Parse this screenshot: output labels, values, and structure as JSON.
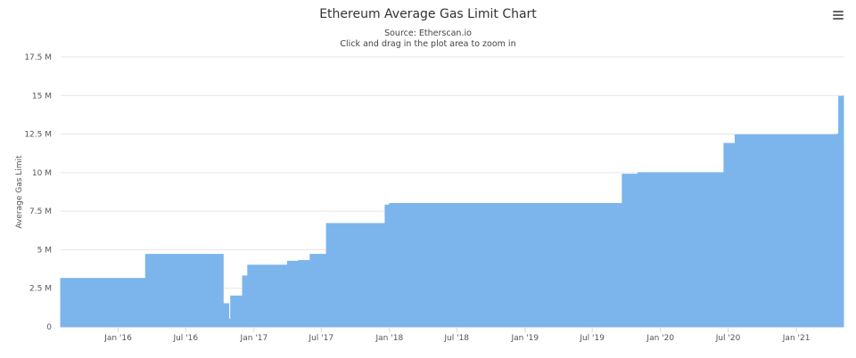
{
  "chart": {
    "title": "Ethereum Average Gas Limit Chart",
    "subtitle_source": "Source: Etherscan.io",
    "subtitle_hint": "Click and drag in the plot area to zoom in",
    "menu_icon": "hamburger-menu-icon"
  },
  "colors": {
    "area_fill": "#7cb5ec",
    "grid": "#e6e6e6",
    "axis_line": "#ccd6eb",
    "text": "#333333"
  },
  "chart_data": {
    "type": "area",
    "title": "Ethereum Average Gas Limit Chart",
    "subtitle": "Source: Etherscan.io",
    "xlabel": "",
    "ylabel": "Average Gas Limit",
    "ylim": [
      0,
      17500000
    ],
    "xlim": [
      "2015-07-30",
      "2021-05-08"
    ],
    "y_ticks": [
      0,
      2500000,
      5000000,
      7500000,
      10000000,
      12500000,
      15000000,
      17500000
    ],
    "y_tick_labels": [
      "0",
      "2.5 M",
      "5 M",
      "7.5 M",
      "10 M",
      "12.5 M",
      "15 M",
      "17.5 M"
    ],
    "x_ticks": [
      "2016-01-01",
      "2016-07-01",
      "2017-01-01",
      "2017-07-01",
      "2018-01-01",
      "2018-07-01",
      "2019-01-01",
      "2019-07-01",
      "2020-01-01",
      "2020-07-01",
      "2021-01-01"
    ],
    "x_tick_labels": [
      "Jan '16",
      "Jul '16",
      "Jan '17",
      "Jul '17",
      "Jan '18",
      "Jul '18",
      "Jan '19",
      "Jul '19",
      "Jan '20",
      "Jul '20",
      "Jan '21"
    ],
    "grid": true,
    "legend": "none",
    "series": [
      {
        "x": [
          "2015-07-30",
          "2015-08-15",
          "2015-09-15",
          "2015-12-01",
          "2016-03-01",
          "2016-03-15",
          "2016-06-01",
          "2016-07-20",
          "2016-09-15",
          "2016-10-10",
          "2016-10-20",
          "2016-10-25",
          "2016-10-30",
          "2016-11-05",
          "2016-11-25",
          "2016-12-01",
          "2016-12-15",
          "2017-01-15",
          "2017-03-01",
          "2017-04-01",
          "2017-05-01",
          "2017-06-01",
          "2017-06-20",
          "2017-07-15",
          "2017-08-01",
          "2017-10-01",
          "2017-12-10",
          "2017-12-20",
          "2018-01-01",
          "2018-06-01",
          "2019-01-01",
          "2019-06-01",
          "2019-09-10",
          "2019-09-20",
          "2019-10-01",
          "2019-11-01",
          "2019-12-01",
          "2020-01-01",
          "2020-03-01",
          "2020-05-01",
          "2020-06-20",
          "2020-07-01",
          "2020-07-20",
          "2020-08-01",
          "2020-10-01",
          "2021-01-01",
          "2021-03-01",
          "2021-04-20",
          "2021-04-25",
          "2021-05-08"
        ],
        "y": [
          3140000,
          3140000,
          3140000,
          3140000,
          3140000,
          4700000,
          4700000,
          4700000,
          4700000,
          1500000,
          1500000,
          500000,
          2000000,
          2000000,
          2000000,
          3300000,
          4000000,
          4000000,
          4000000,
          4250000,
          4300000,
          4700000,
          4700000,
          6700000,
          6700000,
          6700000,
          6700000,
          7900000,
          8000000,
          8000000,
          8000000,
          8000000,
          8000000,
          9900000,
          9900000,
          10000000,
          10000000,
          10000000,
          10000000,
          10000000,
          11900000,
          11900000,
          12450000,
          12450000,
          12450000,
          12450000,
          12450000,
          12500000,
          14950000,
          15000000
        ]
      }
    ]
  }
}
